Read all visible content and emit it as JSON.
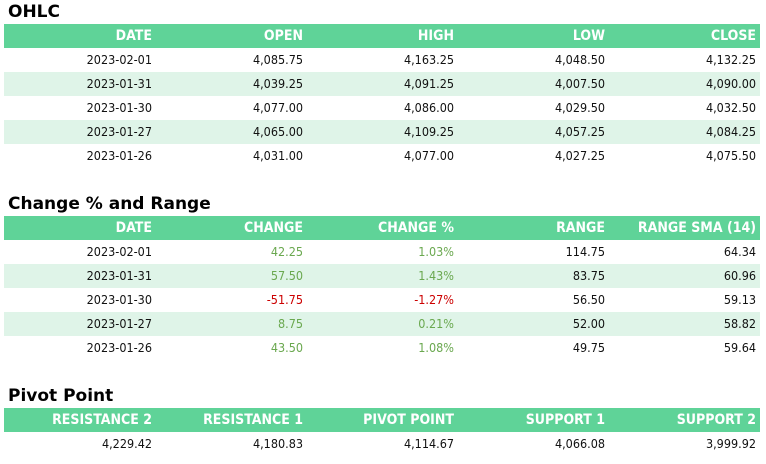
{
  "ohlc": {
    "title": "OHLC",
    "headers": [
      "DATE",
      "OPEN",
      "HIGH",
      "LOW",
      "CLOSE"
    ],
    "rows": [
      [
        "2023-02-01",
        "4,085.75",
        "4,163.25",
        "4,048.50",
        "4,132.25"
      ],
      [
        "2023-01-31",
        "4,039.25",
        "4,091.25",
        "4,007.50",
        "4,090.00"
      ],
      [
        "2023-01-30",
        "4,077.00",
        "4,086.00",
        "4,029.50",
        "4,032.50"
      ],
      [
        "2023-01-27",
        "4,065.00",
        "4,109.25",
        "4,057.25",
        "4,084.25"
      ],
      [
        "2023-01-26",
        "4,031.00",
        "4,077.00",
        "4,027.25",
        "4,075.50"
      ]
    ]
  },
  "change": {
    "title": "Change % and Range",
    "headers": [
      "DATE",
      "CHANGE",
      "CHANGE %",
      "RANGE",
      "RANGE SMA (14)"
    ],
    "rows": [
      [
        "2023-02-01",
        "42.25",
        "1.03%",
        "114.75",
        "64.34"
      ],
      [
        "2023-01-31",
        "57.50",
        "1.43%",
        "83.75",
        "60.96"
      ],
      [
        "2023-01-30",
        "-51.75",
        "-1.27%",
        "56.50",
        "59.13"
      ],
      [
        "2023-01-27",
        "8.75",
        "0.21%",
        "52.00",
        "58.82"
      ],
      [
        "2023-01-26",
        "43.50",
        "1.08%",
        "49.75",
        "59.64"
      ]
    ],
    "colors": {
      "positive": "#6aa84f",
      "negative": "#cc0000"
    }
  },
  "pivot": {
    "title": "Pivot Point",
    "headers": [
      "RESISTANCE 2",
      "RESISTANCE 1",
      "PIVOT POINT",
      "SUPPORT 1",
      "SUPPORT 2"
    ],
    "values": [
      "4,229.42",
      "4,180.83",
      "4,114.67",
      "4,066.08",
      "3,999.92"
    ]
  },
  "colors": {
    "header": "#5fd398",
    "stripe": "#dff4e8"
  }
}
